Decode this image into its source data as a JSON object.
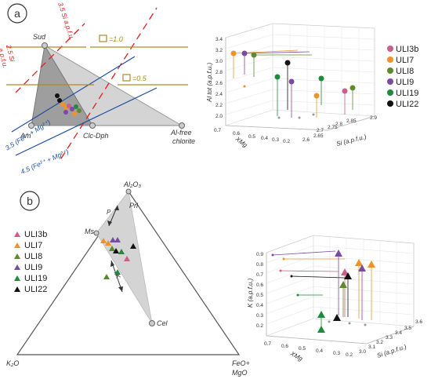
{
  "panel_a": {
    "badge": "a",
    "labels": {
      "sud": "Sud",
      "am": "Am",
      "clc_dph": "Clc-Dph",
      "al_free_1": "Al-free",
      "al_free_2": "chlorite",
      "si35": "3.5 Si a.p.f.u.",
      "si25_1": "2.5 Si",
      "si25_2": "a.p.f.u.",
      "box10": "=1.0",
      "box05": "=0.5",
      "fe35": "3.5 (Fe²⁺ + Mg²⁺)",
      "fe45": "4.5 (Fe²⁺ + Mg²⁺)"
    },
    "plot3d": {
      "zlabel": "Al tot (a.p.f.u.)",
      "xlabel": "Si (a.p.f.u.)",
      "ylabel": "XMg",
      "z_ticks": [
        "3.4",
        "3.2",
        "3.0",
        "2.8",
        "2.6",
        "2.4",
        "2.2",
        "2.0"
      ],
      "x_ticks": [
        "2.6",
        "2.65",
        "2.7",
        "2.75",
        "2.8",
        "2.85",
        "2.9"
      ],
      "y_ticks": [
        "0.7",
        "0.6",
        "0.5",
        "0.4",
        "0.3",
        "0.2"
      ]
    }
  },
  "panel_b": {
    "badge": "b",
    "labels": {
      "al2o3": "Al₂O₃",
      "prl": "Prl",
      "ms": "Ms",
      "cel": "Cel",
      "k2o": "K₂O",
      "feo_1": "FeO+",
      "feo_2": "MgO",
      "p": "P",
      "tk": "TK"
    },
    "plot3d": {
      "zlabel": "K (a.p.f.u.)",
      "xlabel": "Si (a.p.f.u.)",
      "ylabel": "XMg",
      "z_ticks": [
        "0.9",
        "0.8",
        "0.7",
        "0.6",
        "0.5",
        "0.4",
        "0.3",
        "0.2"
      ],
      "x_ticks": [
        "3.0",
        "3.1",
        "3.2",
        "3.3",
        "3.4",
        "3.5",
        "3.6"
      ],
      "y_ticks": [
        "0.7",
        "0.6",
        "0.5",
        "0.4",
        "0.3",
        "0.2"
      ]
    }
  },
  "legend": [
    {
      "name": "ULI3b",
      "color": "#c9608a"
    },
    {
      "name": "ULI7",
      "color": "#f0922a"
    },
    {
      "name": "ULI8",
      "color": "#5c8a2e"
    },
    {
      "name": "ULI9",
      "color": "#7a4ba0"
    },
    {
      "name": "ULI19",
      "color": "#1f8a3a"
    },
    {
      "name": "ULI22",
      "color": "#111111"
    }
  ]
}
